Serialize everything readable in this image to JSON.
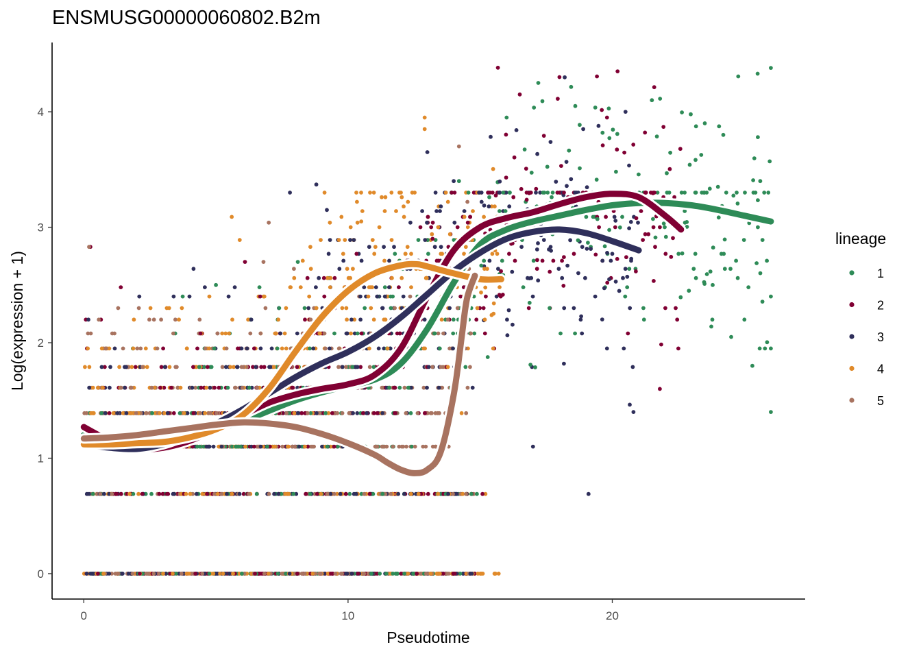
{
  "chart_data": {
    "type": "scatter",
    "title": "ENSMUSG00000060802.B2m",
    "xlabel": "Pseudotime",
    "ylabel": "Log(expression + 1)",
    "xlim": [
      -1.2,
      27.3
    ],
    "ylim": [
      -0.22,
      4.6
    ],
    "x_ticks": [
      0,
      10,
      20
    ],
    "y_ticks": [
      0,
      1,
      2,
      3,
      4
    ],
    "grid": false,
    "legend": {
      "title": "lineage",
      "position": "right"
    },
    "discrete_levels": [
      0,
      0.69,
      1.1,
      1.39,
      1.61,
      1.79,
      1.95,
      2.08,
      2.2,
      2.3,
      2.4,
      2.48,
      2.56,
      2.64,
      2.71,
      2.77,
      2.83,
      2.89,
      2.94,
      3.0,
      3.04,
      3.09,
      3.14,
      3.18,
      3.22,
      3.26,
      3.3
    ],
    "series": [
      {
        "name": "1",
        "color": "#2E8B57",
        "x_range": [
          0,
          26
        ],
        "smooth": {
          "x": [
            0,
            2,
            4,
            6,
            8,
            9.5,
            11,
            12,
            13,
            14,
            15,
            16,
            17,
            18,
            19,
            20,
            21,
            22,
            23,
            24,
            25,
            26
          ],
          "y": [
            1.2,
            1.12,
            1.18,
            1.32,
            1.5,
            1.6,
            1.68,
            1.82,
            2.12,
            2.52,
            2.85,
            2.98,
            3.05,
            3.1,
            3.15,
            3.19,
            3.21,
            3.21,
            3.19,
            3.15,
            3.1,
            3.05
          ]
        },
        "points": [
          [
            17.2,
            4.25
          ],
          [
            18.6,
            4.05
          ],
          [
            14.2,
            3.4
          ],
          [
            25.5,
            4.33
          ],
          [
            26.0,
            4.38
          ],
          [
            23.5,
            3.9
          ],
          [
            16.0,
            3.95
          ],
          [
            21.5,
            4.1
          ],
          [
            8.1,
            2.7
          ],
          [
            5.0,
            2.5
          ],
          [
            24.0,
            3.35
          ],
          [
            25.0,
            2.2
          ],
          [
            26.0,
            2.4
          ],
          [
            26.0,
            1.4
          ],
          [
            25.3,
            1.8
          ],
          [
            26.0,
            1.95
          ],
          [
            24.5,
            2.05
          ],
          [
            23.8,
            2.5
          ],
          [
            21.2,
            2.2
          ],
          [
            22.9,
            2.45
          ],
          [
            24.2,
            3.8
          ],
          [
            25.6,
            3.4
          ]
        ]
      },
      {
        "name": "2",
        "color": "#800033",
        "x_range": [
          0,
          22.6
        ],
        "smooth": {
          "x": [
            0,
            1,
            2,
            3,
            4,
            5,
            6,
            7,
            8,
            9,
            10,
            11,
            12,
            13,
            14,
            15,
            16,
            17,
            18,
            19,
            20,
            21,
            22,
            22.6
          ],
          "y": [
            1.27,
            1.15,
            1.08,
            1.09,
            1.15,
            1.25,
            1.37,
            1.48,
            1.55,
            1.6,
            1.64,
            1.72,
            1.95,
            2.4,
            2.8,
            3.0,
            3.08,
            3.13,
            3.2,
            3.26,
            3.29,
            3.26,
            3.1,
            2.98
          ]
        },
        "points": [
          [
            20.2,
            4.35
          ],
          [
            18.0,
            4.3
          ],
          [
            16.5,
            4.15
          ],
          [
            0.25,
            2.83
          ],
          [
            1.4,
            2.48
          ],
          [
            6.1,
            2.7
          ],
          [
            13.2,
            2.9
          ],
          [
            9.5,
            2.3
          ],
          [
            19.8,
            3.95
          ],
          [
            22.5,
            1.95
          ],
          [
            21.8,
            1.6
          ],
          [
            22.4,
            2.3
          ]
        ]
      },
      {
        "name": "3",
        "color": "#2F2F5B",
        "x_range": [
          0,
          21.0
        ],
        "smooth": {
          "x": [
            0,
            1,
            2,
            3,
            4,
            5,
            6,
            7,
            8,
            9,
            10,
            11,
            12,
            13,
            14,
            15,
            16,
            17,
            18,
            19,
            20,
            21
          ],
          "y": [
            1.12,
            1.09,
            1.08,
            1.12,
            1.2,
            1.3,
            1.42,
            1.56,
            1.7,
            1.82,
            1.92,
            2.05,
            2.22,
            2.42,
            2.62,
            2.78,
            2.9,
            2.96,
            2.98,
            2.95,
            2.88,
            2.8
          ]
        },
        "points": [
          [
            7.8,
            3.3
          ],
          [
            8.8,
            3.37
          ],
          [
            9.2,
            3.15
          ],
          [
            13.0,
            3.65
          ],
          [
            14.0,
            3.4
          ],
          [
            17.0,
            1.1
          ],
          [
            19.1,
            0.69
          ],
          [
            20.8,
            1.4
          ],
          [
            2.1,
            2.4
          ],
          [
            4.0,
            2.4
          ],
          [
            20.5,
            4.0
          ],
          [
            18.9,
            3.85
          ]
        ]
      },
      {
        "name": "4",
        "color": "#E08A2A",
        "x_range": [
          0,
          15.8
        ],
        "smooth": {
          "x": [
            0,
            1,
            2,
            3,
            4,
            5,
            6,
            7,
            8,
            9,
            10,
            11,
            12,
            12.6,
            13,
            14,
            15,
            15.8
          ],
          "y": [
            1.12,
            1.12,
            1.13,
            1.14,
            1.18,
            1.25,
            1.37,
            1.6,
            1.92,
            2.22,
            2.45,
            2.6,
            2.67,
            2.68,
            2.66,
            2.6,
            2.55,
            2.55
          ]
        },
        "points": [
          [
            12.9,
            3.95
          ],
          [
            12.9,
            3.85
          ],
          [
            5.6,
            3.09
          ],
          [
            5.9,
            2.89
          ],
          [
            10.1,
            3.0
          ],
          [
            10.5,
            3.05
          ],
          [
            15.7,
            0.0
          ],
          [
            15.2,
            0.69
          ],
          [
            3.6,
            2.2
          ],
          [
            3.9,
            1.95
          ],
          [
            12.0,
            3.3
          ]
        ]
      },
      {
        "name": "5",
        "color": "#A87360",
        "x_range": [
          0,
          14.8
        ],
        "smooth": {
          "x": [
            0,
            1,
            2,
            3,
            4,
            5,
            6,
            7,
            8,
            9,
            10,
            11,
            11.5,
            12,
            12.5,
            13,
            13.5,
            14,
            14.3,
            14.5,
            14.8
          ],
          "y": [
            1.17,
            1.18,
            1.2,
            1.23,
            1.26,
            1.29,
            1.31,
            1.3,
            1.27,
            1.21,
            1.13,
            1.03,
            0.96,
            0.9,
            0.87,
            0.9,
            1.05,
            1.55,
            2.05,
            2.38,
            2.58
          ]
        },
        "points": [
          [
            7.0,
            3.04
          ],
          [
            0.2,
            2.83
          ],
          [
            14.2,
            3.7
          ],
          [
            6.8,
            2.7
          ]
        ]
      }
    ]
  }
}
